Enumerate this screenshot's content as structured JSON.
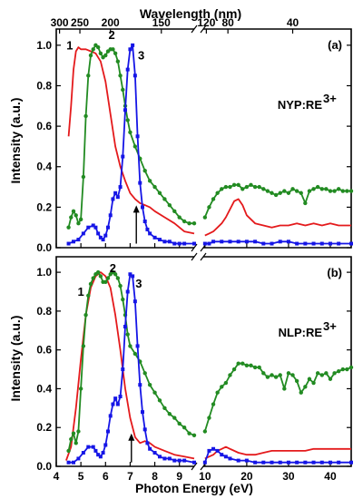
{
  "chart_data": {
    "type": "line",
    "top_axis": {
      "label": "Wavelength (nm)",
      "left_ticks": [
        {
          "v": 300,
          "t": "300"
        },
        {
          "v": 250,
          "t": "250"
        },
        {
          "v": 200,
          "t": "200"
        },
        {
          "v": 150,
          "t": "150"
        },
        {
          "v": 120,
          "t": "120"
        }
      ],
      "right_ticks": [
        {
          "v": 80,
          "t": "80"
        },
        {
          "v": 40,
          "t": "40"
        }
      ]
    },
    "x_axis": {
      "label": "Photon Energy (eV)",
      "left_range": [
        4,
        9.6
      ],
      "right_range": [
        9.6,
        45
      ],
      "left_ticks": [
        {
          "v": 4,
          "t": "4"
        },
        {
          "v": 5,
          "t": "5"
        },
        {
          "v": 6,
          "t": "6"
        },
        {
          "v": 7,
          "t": "7"
        },
        {
          "v": 8,
          "t": "8"
        },
        {
          "v": 9,
          "t": "9"
        }
      ],
      "right_ticks": [
        {
          "v": 10,
          "t": "10"
        },
        {
          "v": 20,
          "t": "20"
        },
        {
          "v": 30,
          "t": "30"
        },
        {
          "v": 40,
          "t": "40"
        }
      ]
    },
    "y_axis": {
      "label": "Intensity (a.u.)",
      "range": [
        0,
        1.08
      ],
      "ticks": [
        {
          "v": 0,
          "t": "0.0"
        },
        {
          "v": 0.2,
          "t": "0.2"
        },
        {
          "v": 0.4,
          "t": "0.4"
        },
        {
          "v": 0.6,
          "t": "0.6"
        },
        {
          "v": 0.8,
          "t": "0.8"
        },
        {
          "v": 1.0,
          "t": "1.0"
        }
      ]
    },
    "colors": {
      "1": "#e41a1c",
      "2": "#228b22",
      "3": "#1515e6"
    },
    "panels": [
      {
        "panel_label": "(a)",
        "sample": "NYP:RE",
        "sample_sup": "3+",
        "curve_labels": [
          {
            "id": "1",
            "x": 4.55,
            "y": 0.98
          },
          {
            "id": "2",
            "x": 6.25,
            "y": 1.03
          },
          {
            "id": "3",
            "x": 7.45,
            "y": 0.93
          }
        ],
        "arrow": {
          "x": 7.25,
          "y_from": 0.02,
          "y_to": 0.2
        },
        "series": [
          {
            "id": "1",
            "marker": "none",
            "x": [
              4.5,
              4.6,
              4.7,
              4.8,
              4.9,
              5.0,
              5.2,
              5.4,
              5.6,
              5.8,
              6.0,
              6.2,
              6.4,
              6.6,
              6.8,
              7.0,
              7.2,
              7.4,
              7.6,
              7.8,
              8.0,
              8.4,
              8.8,
              9.2,
              9.6,
              10,
              11,
              12,
              13,
              14,
              15,
              16,
              17,
              18,
              19,
              20,
              22,
              24,
              26,
              28,
              30,
              32,
              34,
              36,
              38,
              40,
              42,
              45
            ],
            "y": [
              0.55,
              0.7,
              0.88,
              0.97,
              0.99,
              0.98,
              0.98,
              0.97,
              0.96,
              0.92,
              0.82,
              0.66,
              0.5,
              0.4,
              0.33,
              0.27,
              0.24,
              0.22,
              0.21,
              0.2,
              0.18,
              0.15,
              0.12,
              0.08,
              0.07,
              0.06,
              0.07,
              0.08,
              0.1,
              0.12,
              0.15,
              0.19,
              0.23,
              0.24,
              0.21,
              0.16,
              0.12,
              0.11,
              0.1,
              0.11,
              0.11,
              0.12,
              0.11,
              0.12,
              0.11,
              0.12,
              0.11,
              0.11
            ]
          },
          {
            "id": "2",
            "marker": "circle",
            "x": [
              4.5,
              4.6,
              4.7,
              4.8,
              4.9,
              5.0,
              5.1,
              5.2,
              5.3,
              5.4,
              5.5,
              5.6,
              5.7,
              5.8,
              5.9,
              6.0,
              6.1,
              6.2,
              6.3,
              6.4,
              6.5,
              6.6,
              6.7,
              6.8,
              6.9,
              7.0,
              7.2,
              7.4,
              7.6,
              7.8,
              8.0,
              8.2,
              8.4,
              8.6,
              8.8,
              9.0,
              9.2,
              9.4,
              9.6,
              10,
              11,
              12,
              13,
              14,
              15,
              16,
              17,
              18,
              19,
              20,
              21,
              22,
              23,
              24,
              25,
              26,
              27,
              28,
              29,
              30,
              31,
              32,
              33,
              34,
              35,
              36,
              37,
              38,
              39,
              40,
              41,
              42,
              43,
              44,
              45
            ],
            "y": [
              0.1,
              0.15,
              0.18,
              0.16,
              0.12,
              0.14,
              0.35,
              0.65,
              0.85,
              0.95,
              0.98,
              1.0,
              0.99,
              0.96,
              0.94,
              0.95,
              0.97,
              0.98,
              0.98,
              0.96,
              0.92,
              0.85,
              0.78,
              0.7,
              0.63,
              0.57,
              0.5,
              0.44,
              0.38,
              0.33,
              0.3,
              0.27,
              0.24,
              0.21,
              0.18,
              0.15,
              0.13,
              0.12,
              0.12,
              0.15,
              0.2,
              0.24,
              0.27,
              0.29,
              0.3,
              0.3,
              0.31,
              0.31,
              0.29,
              0.3,
              0.31,
              0.3,
              0.3,
              0.29,
              0.28,
              0.27,
              0.26,
              0.27,
              0.28,
              0.27,
              0.29,
              0.28,
              0.27,
              0.22,
              0.28,
              0.29,
              0.3,
              0.29,
              0.29,
              0.28,
              0.28,
              0.29,
              0.28,
              0.28,
              0.28
            ]
          },
          {
            "id": "3",
            "marker": "square",
            "x": [
              4.5,
              4.7,
              4.9,
              5.1,
              5.3,
              5.5,
              5.6,
              5.7,
              5.8,
              5.9,
              6.0,
              6.1,
              6.2,
              6.3,
              6.4,
              6.5,
              6.6,
              6.7,
              6.8,
              6.9,
              7.0,
              7.1,
              7.2,
              7.3,
              7.4,
              7.5,
              7.6,
              7.7,
              7.8,
              8.0,
              8.2,
              8.4,
              8.6,
              8.8,
              9.0,
              9.2,
              9.6,
              10,
              11,
              12,
              14,
              16,
              18,
              20,
              22,
              24,
              26,
              28,
              30,
              32,
              34,
              36,
              38,
              40,
              42,
              45
            ],
            "y": [
              0.02,
              0.03,
              0.04,
              0.07,
              0.1,
              0.11,
              0.1,
              0.07,
              0.05,
              0.04,
              0.06,
              0.1,
              0.16,
              0.24,
              0.27,
              0.25,
              0.3,
              0.45,
              0.68,
              0.88,
              0.98,
              1.0,
              0.85,
              0.55,
              0.32,
              0.2,
              0.13,
              0.09,
              0.07,
              0.05,
              0.04,
              0.03,
              0.03,
              0.02,
              0.02,
              0.02,
              0.02,
              0.02,
              0.02,
              0.03,
              0.03,
              0.03,
              0.03,
              0.03,
              0.03,
              0.02,
              0.02,
              0.03,
              0.03,
              0.02,
              0.02,
              0.02,
              0.02,
              0.02,
              0.02,
              0.02
            ]
          }
        ]
      },
      {
        "panel_label": "(b)",
        "sample": "NLP:RE",
        "sample_sup": "3+",
        "curve_labels": [
          {
            "id": "1",
            "x": 5.0,
            "y": 0.88
          },
          {
            "id": "2",
            "x": 6.3,
            "y": 1.0
          },
          {
            "id": "3",
            "x": 7.35,
            "y": 0.92
          }
        ],
        "arrow": {
          "x": 7.05,
          "y_from": 0.02,
          "y_to": 0.16
        },
        "series": [
          {
            "id": "1",
            "marker": "none",
            "x": [
              4.4,
              4.6,
              4.8,
              5.0,
              5.2,
              5.4,
              5.6,
              5.8,
              6.0,
              6.2,
              6.4,
              6.6,
              6.8,
              7.0,
              7.2,
              7.4,
              7.6,
              7.8,
              8.0,
              8.4,
              8.8,
              9.2,
              9.6,
              10,
              11,
              12,
              13,
              14,
              15,
              16,
              18,
              20,
              22,
              24,
              26,
              28,
              30,
              32,
              34,
              36,
              38,
              40,
              42,
              45
            ],
            "y": [
              0.03,
              0.1,
              0.3,
              0.55,
              0.78,
              0.92,
              0.98,
              1.0,
              0.98,
              0.92,
              0.78,
              0.6,
              0.4,
              0.25,
              0.15,
              0.12,
              0.13,
              0.12,
              0.1,
              0.08,
              0.06,
              0.05,
              0.04,
              0.04,
              0.05,
              0.06,
              0.08,
              0.09,
              0.1,
              0.09,
              0.07,
              0.06,
              0.06,
              0.07,
              0.08,
              0.08,
              0.08,
              0.08,
              0.08,
              0.09,
              0.09,
              0.09,
              0.09,
              0.09
            ]
          },
          {
            "id": "2",
            "marker": "circle",
            "x": [
              4.5,
              4.6,
              4.7,
              4.8,
              4.9,
              5.0,
              5.1,
              5.2,
              5.3,
              5.4,
              5.5,
              5.6,
              5.7,
              5.8,
              5.9,
              6.0,
              6.1,
              6.2,
              6.3,
              6.4,
              6.5,
              6.6,
              6.7,
              6.8,
              6.9,
              7.0,
              7.2,
              7.4,
              7.6,
              7.8,
              8.0,
              8.2,
              8.4,
              8.6,
              8.8,
              9.0,
              9.2,
              9.4,
              9.6,
              10,
              11,
              12,
              13,
              14,
              15,
              16,
              17,
              18,
              19,
              20,
              21,
              22,
              23,
              24,
              25,
              26,
              27,
              28,
              29,
              30,
              31,
              32,
              33,
              34,
              35,
              36,
              37,
              38,
              39,
              40,
              41,
              42,
              43,
              44,
              45
            ],
            "y": [
              0.08,
              0.14,
              0.17,
              0.12,
              0.18,
              0.4,
              0.62,
              0.78,
              0.88,
              0.94,
              0.97,
              0.99,
              1.0,
              0.98,
              0.95,
              0.95,
              0.97,
              0.99,
              1.0,
              0.99,
              0.97,
              0.93,
              0.86,
              0.78,
              0.68,
              0.62,
              0.58,
              0.54,
              0.48,
              0.42,
              0.38,
              0.34,
              0.3,
              0.27,
              0.25,
              0.22,
              0.2,
              0.17,
              0.16,
              0.18,
              0.25,
              0.32,
              0.38,
              0.41,
              0.43,
              0.47,
              0.5,
              0.53,
              0.53,
              0.52,
              0.52,
              0.51,
              0.51,
              0.48,
              0.46,
              0.47,
              0.46,
              0.47,
              0.4,
              0.48,
              0.47,
              0.44,
              0.38,
              0.41,
              0.45,
              0.43,
              0.48,
              0.47,
              0.48,
              0.45,
              0.48,
              0.49,
              0.5,
              0.5,
              0.51
            ]
          },
          {
            "id": "3",
            "marker": "square",
            "x": [
              4.5,
              4.7,
              4.9,
              5.1,
              5.3,
              5.5,
              5.6,
              5.7,
              5.8,
              5.9,
              6.0,
              6.1,
              6.2,
              6.3,
              6.4,
              6.5,
              6.6,
              6.7,
              6.8,
              6.9,
              7.0,
              7.1,
              7.2,
              7.3,
              7.4,
              7.5,
              7.6,
              7.7,
              7.8,
              8.0,
              8.2,
              8.4,
              8.6,
              8.8,
              9.0,
              9.2,
              9.6,
              10,
              11,
              12,
              13,
              14,
              15,
              16,
              18,
              20,
              22,
              24,
              26,
              28,
              30,
              32,
              34,
              36,
              38,
              40,
              42,
              45
            ],
            "y": [
              0.02,
              0.02,
              0.04,
              0.07,
              0.1,
              0.1,
              0.08,
              0.06,
              0.05,
              0.07,
              0.11,
              0.18,
              0.26,
              0.32,
              0.35,
              0.32,
              0.36,
              0.5,
              0.72,
              0.9,
              0.99,
              0.98,
              0.85,
              0.62,
              0.42,
              0.28,
              0.19,
              0.12,
              0.09,
              0.07,
              0.05,
              0.04,
              0.04,
              0.03,
              0.03,
              0.03,
              0.02,
              0.02,
              0.08,
              0.09,
              0.08,
              0.06,
              0.05,
              0.04,
              0.03,
              0.03,
              0.02,
              0.02,
              0.02,
              0.02,
              0.02,
              0.02,
              0.02,
              0.02,
              0.02,
              0.02,
              0.02,
              0.02
            ]
          }
        ]
      }
    ]
  }
}
